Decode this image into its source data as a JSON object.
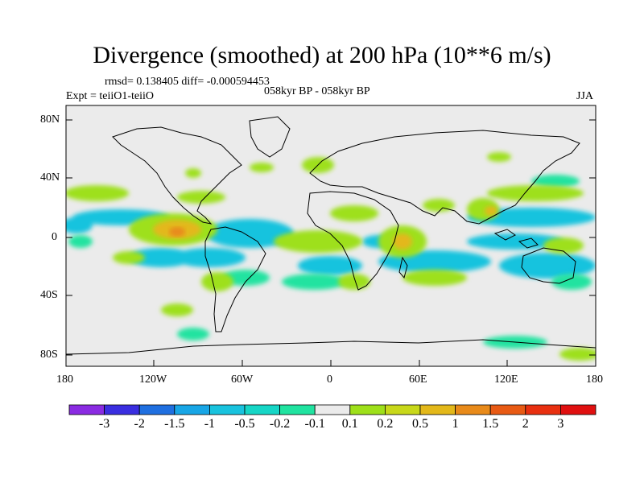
{
  "title": "Divergence (smoothed) at 200 hPa (10**6 m/s)",
  "stats_line": "rmsd= 0.138405 diff= -0.000594453",
  "expt_line": "Expt = teiiO1-teiiO",
  "period_line": "058kyr BP - 058kyr BP",
  "season": "JJA",
  "lat_ticks": [
    "80N",
    "40N",
    "0",
    "40S",
    "80S"
  ],
  "lon_ticks": [
    "180",
    "120W",
    "60W",
    "0",
    "60E",
    "120E",
    "180"
  ],
  "colorbar": {
    "labels": [
      "-3",
      "-2",
      "-1.5",
      "-1",
      "-0.5",
      "-0.2",
      "-0.1",
      "0.1",
      "0.2",
      "0.5",
      "1",
      "1.5",
      "2",
      "3"
    ],
    "colors": [
      "#8a2be2",
      "#3a2ee0",
      "#1f6fe0",
      "#18a6e6",
      "#19c3de",
      "#16d6c6",
      "#20e3a0",
      "#ebebeb",
      "#9ee01a",
      "#c8d81a",
      "#e3b81a",
      "#e88a1a",
      "#e85a14",
      "#e83010",
      "#e01010"
    ]
  },
  "colors": {
    "ocean_background": "#ebebeb",
    "coastline": "#000000"
  }
}
